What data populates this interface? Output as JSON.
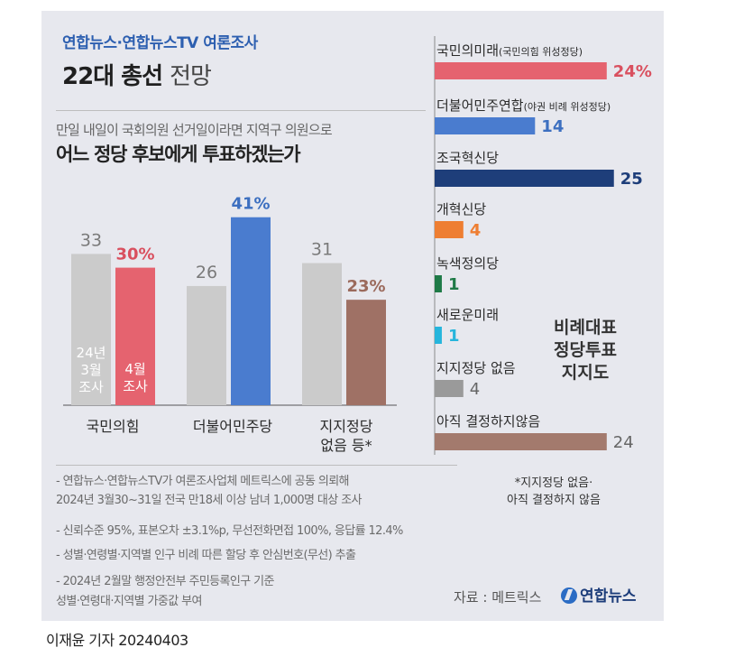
{
  "header": {
    "source_line": "연합뉴스·연합뉴스TV 여론조사",
    "title_bold": "22대 총선",
    "title_light": "전망"
  },
  "question": {
    "line1": "만일 내일이 국회의원 선거일이라면 지역구 의원으로",
    "line2": "어느 정당 후보에게 투표하겠는가"
  },
  "notes": [
    "- 연합뉴스·연합뉴스TV가 여론조사업체 메트릭스에 공동 의뢰해",
    "  2024년 3월30~31일 전국 만18세 이상 남녀 1,000명 대상 조사",
    "- 신뢰수준 95%, 표본오차 ±3.1%p, 무선전화면접 100%, 응답률 12.4%",
    "- 성별·연령별·지역별 인구 비례 따른 할당 후 안심번호(무선) 추출",
    "- 2024년 2월말 행정안전부 주민등록인구 기준",
    "  성별·연령대·지역별 가중값 부여"
  ],
  "side_label": [
    "비례대표",
    "정당투표",
    "지지도"
  ],
  "asterisk_note": [
    "*지지정당 없음·",
    "아직 결정하지 않음"
  ],
  "source": "자료 : 메트릭스",
  "logo": "연합뉴스",
  "footer": "이재윤 기자  20240403",
  "colors": {
    "grey_bar": "#cbcbcb",
    "ppp": "#e5636f",
    "dem": "#4a7ccf",
    "none": "#9f7165",
    "cho": "#1e3e7a",
    "reform": "#ee7e32",
    "green": "#1f7a47",
    "newfuture": "#26b5dc",
    "nosupport_bar": "#9a9a9a",
    "undecided_bar": "#a37a6d",
    "label_ppp": "#d9505f",
    "label_dem": "#3c6fc0"
  },
  "chart_data": [
    {
      "type": "bar",
      "title": "어느 정당 후보에게 투표하겠는가",
      "categories": [
        "국민의힘",
        "더불어민주당",
        "지지정당\n없음 등*"
      ],
      "series": [
        {
          "name": "24년\n3월\n조사",
          "values": [
            33,
            26,
            31
          ]
        },
        {
          "name": "4월\n조사",
          "values": [
            30,
            41,
            23
          ]
        }
      ],
      "value_labels": [
        [
          "33",
          "26",
          "31"
        ],
        [
          "30%",
          "41%",
          "23%"
        ]
      ]
    },
    {
      "type": "bar",
      "orientation": "horizontal",
      "title": "비례대표 정당투표 지지도",
      "categories": [
        "국민의미래",
        "더불어민주연합",
        "조국혁신당",
        "개혁신당",
        "녹색정의당",
        "새로운미래",
        "지지정당 없음",
        "아직 결정하지않음"
      ],
      "sublabels": [
        "(국민의힘 위성정당)",
        "(야권 비례 위성정당)",
        "",
        "",
        "",
        "",
        "",
        ""
      ],
      "values": [
        24,
        14,
        25,
        4,
        1,
        1,
        4,
        24
      ],
      "value_labels": [
        "24%",
        "14",
        "25",
        "4",
        "1",
        "1",
        "4",
        "24"
      ]
    }
  ]
}
